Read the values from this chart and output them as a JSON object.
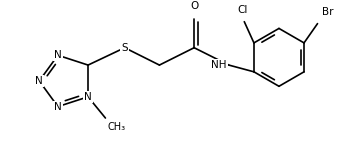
{
  "bg_color": "#ffffff",
  "line_color": "#000000",
  "lw": 1.2,
  "fs": 7.5,
  "xlim": [
    0,
    360
  ],
  "ylim": [
    0,
    160
  ]
}
